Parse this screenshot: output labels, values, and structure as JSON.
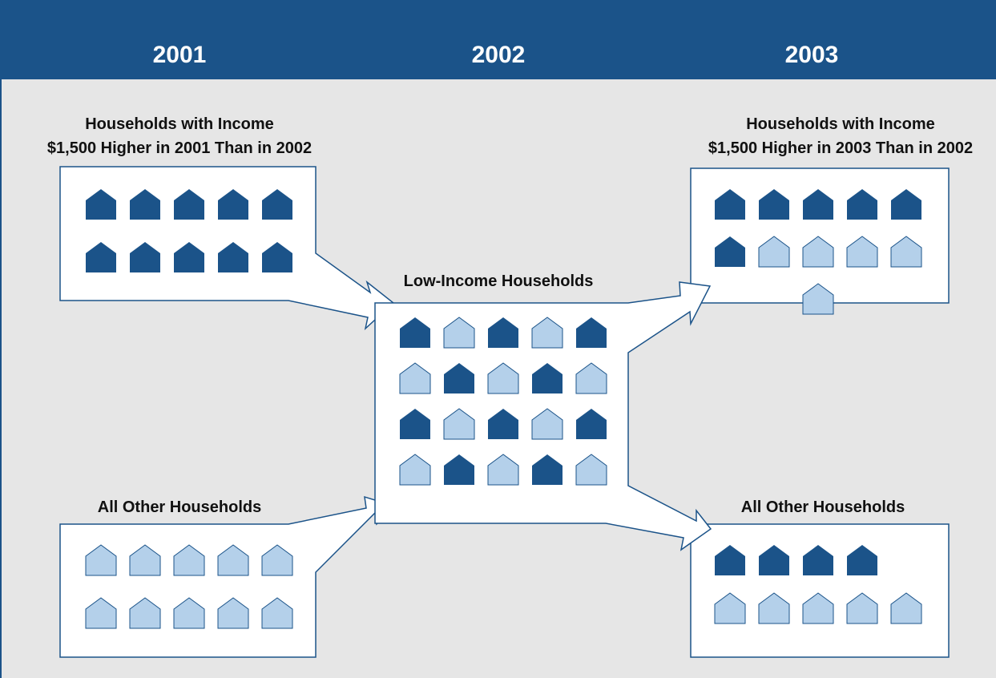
{
  "header": {
    "years": [
      "2001",
      "2002",
      "2003"
    ]
  },
  "groups": {
    "high_2001": {
      "label_line1": "Households with Income",
      "label_line2": "$1,500 Higher in 2001 Than in 2002",
      "houses": [
        "dark",
        "dark",
        "dark",
        "dark",
        "dark",
        "dark",
        "dark",
        "dark",
        "dark",
        "dark"
      ]
    },
    "other_2001": {
      "label_line1": "All Other Households",
      "houses": [
        "light",
        "light",
        "light",
        "light",
        "light",
        "light",
        "light",
        "light",
        "light",
        "light"
      ]
    },
    "low_2002": {
      "label_line1": "Low-Income Households",
      "houses": [
        "dark",
        "light",
        "dark",
        "light",
        "dark",
        "light",
        "dark",
        "light",
        "dark",
        "light",
        "dark",
        "light",
        "dark",
        "light",
        "dark",
        "light",
        "dark",
        "light",
        "dark",
        "light"
      ]
    },
    "high_2003": {
      "label_line1": "Households with Income",
      "label_line2": "$1,500 Higher in 2003 Than in 2002",
      "houses": [
        "dark",
        "dark",
        "dark",
        "dark",
        "dark",
        "dark",
        "light",
        "light",
        "light",
        "light",
        "light"
      ]
    },
    "other_2003": {
      "label_line1": "All Other Households",
      "houses": [
        "dark",
        "dark",
        "dark",
        "dark",
        "light",
        "light",
        "light",
        "light",
        "light"
      ]
    }
  },
  "colors": {
    "header": "#1b5389",
    "background": "#e6e6e6",
    "house_dark": "#1b5389",
    "house_light": "#b4d0ea",
    "outline": "#1b5389"
  },
  "icons": {
    "house": "house-icon"
  }
}
